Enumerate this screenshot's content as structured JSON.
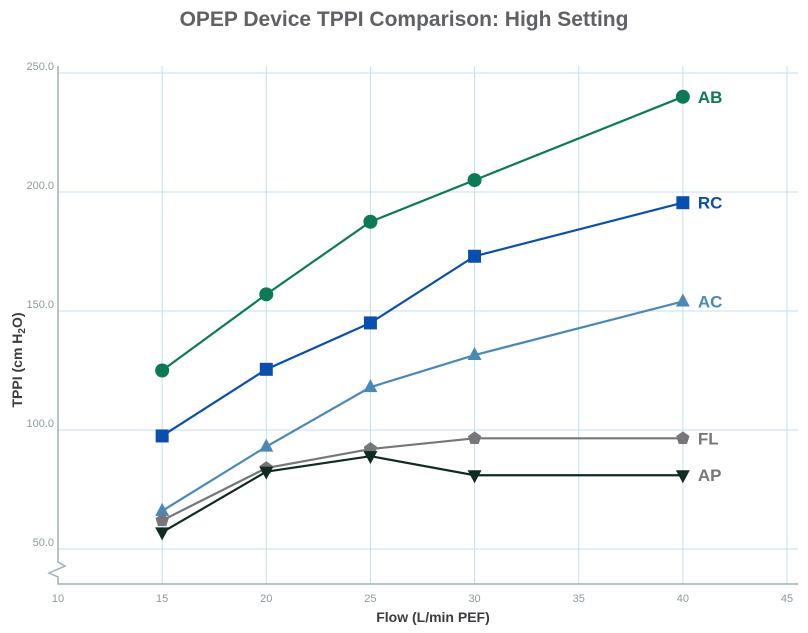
{
  "chart_data": {
    "type": "line",
    "title": "OPEP Device TPPI Comparison: High Setting",
    "xlabel": "Flow (L/min PEF)",
    "ylabel": "TPPI (cm H2O)",
    "ylabel_parts": {
      "main": "TPPI (cm H",
      "sub": "2",
      "end": "O)"
    },
    "xlim": [
      10,
      45
    ],
    "ylim": [
      50,
      250
    ],
    "y_axis_break": true,
    "grid": true,
    "legend": "inline labels at right end of each series",
    "x_ticks": [
      "10",
      "15",
      "20",
      "25",
      "30",
      "35",
      "40",
      "45"
    ],
    "y_ticks": [
      "50.0",
      "100.0",
      "150.0",
      "200.0",
      "250.0"
    ],
    "x": [
      15,
      20,
      25,
      30,
      40
    ],
    "series": [
      {
        "name": "AB",
        "marker": "circle",
        "color": "#0e7a55",
        "values": [
          125,
          157,
          187.5,
          205,
          240
        ]
      },
      {
        "name": "RC",
        "marker": "square",
        "color": "#0b4fae",
        "values": [
          97.5,
          125.5,
          145,
          173,
          195.5
        ]
      },
      {
        "name": "AC",
        "marker": "triangle-up",
        "color": "#4a88b5",
        "values": [
          66,
          93,
          118,
          131.5,
          154
        ]
      },
      {
        "name": "FL",
        "marker": "pentagon",
        "color": "#76767b",
        "values": [
          62,
          84,
          92,
          96.5,
          96.5
        ]
      },
      {
        "name": "AP",
        "marker": "triangle-down",
        "color": "#0f2b22",
        "values": [
          57,
          82.5,
          89,
          81,
          81
        ]
      }
    ]
  }
}
